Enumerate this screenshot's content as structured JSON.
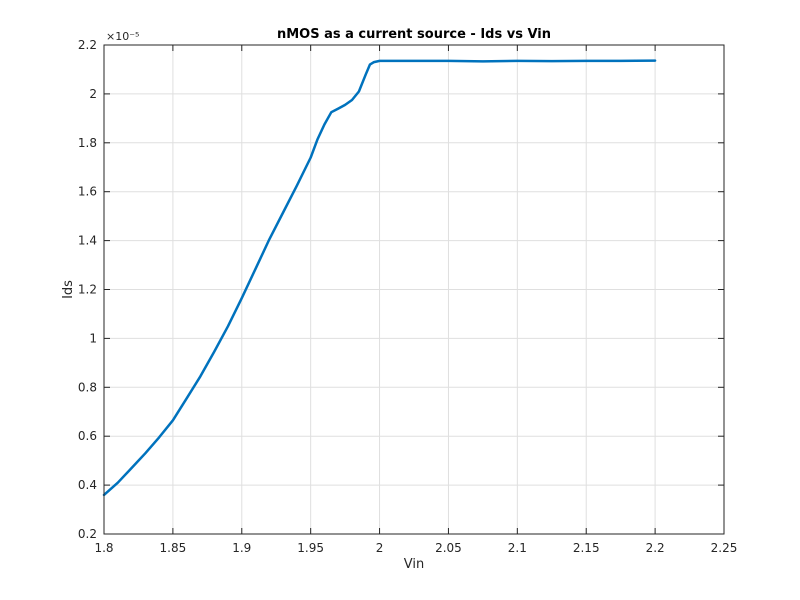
{
  "chart_data": {
    "type": "line",
    "title": "nMOS as a current source - Ids vs Vin",
    "xlabel": "Vin",
    "ylabel": "Ids",
    "xlim": [
      1.8,
      2.25
    ],
    "ylim": [
      0.2,
      2.2
    ],
    "y_scale_exponent": "×10⁻⁵",
    "xticks": [
      "1.8",
      "1.85",
      "1.9",
      "1.95",
      "2",
      "2.05",
      "2.1",
      "2.15",
      "2.2",
      "2.25"
    ],
    "yticks": [
      "0.2",
      "0.4",
      "0.6",
      "0.8",
      "1",
      "1.2",
      "1.4",
      "1.6",
      "1.8",
      "2",
      "2.2"
    ],
    "grid": true,
    "line_color": "#0072bd",
    "series": [
      {
        "name": "",
        "x": [
          1.8,
          1.81,
          1.82,
          1.83,
          1.84,
          1.85,
          1.86,
          1.87,
          1.88,
          1.89,
          1.9,
          1.91,
          1.92,
          1.93,
          1.94,
          1.95,
          1.955,
          1.96,
          1.965,
          1.97,
          1.975,
          1.98,
          1.985,
          1.99,
          1.993,
          1.996,
          2.0,
          2.025,
          2.05,
          2.075,
          2.1,
          2.125,
          2.15,
          2.175,
          2.2
        ],
        "y": [
          0.36,
          0.41,
          0.47,
          0.53,
          0.595,
          0.665,
          0.755,
          0.845,
          0.945,
          1.05,
          1.165,
          1.285,
          1.405,
          1.515,
          1.625,
          1.74,
          1.815,
          1.875,
          1.925,
          1.94,
          1.955,
          1.975,
          2.01,
          2.08,
          2.12,
          2.13,
          2.135,
          2.135,
          2.135,
          2.133,
          2.135,
          2.134,
          2.135,
          2.135,
          2.136
        ]
      }
    ]
  }
}
